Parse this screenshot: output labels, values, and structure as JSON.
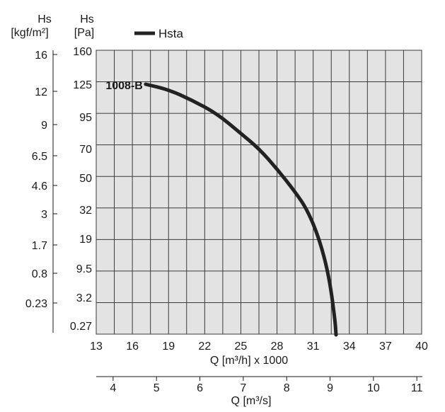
{
  "chart_data": {
    "type": "line",
    "x_axis": {
      "label": "Q [m³/h] x 1000",
      "range": [
        13,
        40
      ],
      "ticks": [
        "13",
        "16",
        "19",
        "22",
        "25",
        "28",
        "31",
        "34",
        "37",
        "40"
      ]
    },
    "x2_axis": {
      "label": "Q [m³/s]",
      "range": [
        3.611,
        11.111
      ],
      "ticks": [
        "4",
        "5",
        "6",
        "7",
        "8",
        "9",
        "10",
        "11"
      ]
    },
    "y_axis_outer": {
      "unit_line1": "Hs",
      "unit_line2": "[kgf/m²]",
      "ticks": [
        "16",
        "12",
        "9",
        "6.5",
        "4.6",
        "3",
        "1.7",
        "0.8",
        "0.23"
      ]
    },
    "y_axis_inner": {
      "unit_line1": "Hs",
      "unit_line2": "[Pa]",
      "ticks": [
        "160",
        "125",
        "95",
        "70",
        "50",
        "32",
        "19",
        "9.5",
        "3.2",
        "0.27"
      ]
    },
    "grid": true,
    "legend": {
      "position": "top-left",
      "entries": [
        {
          "name": "Hsta",
          "color": "#222222"
        }
      ]
    },
    "series": [
      {
        "name": "Hsta",
        "label": "1008-B",
        "color": "#222222",
        "points": [
          {
            "q": 17.1,
            "h": 125
          },
          {
            "q": 19.0,
            "h": 120
          },
          {
            "q": 21.0,
            "h": 110
          },
          {
            "q": 23.0,
            "h": 98
          },
          {
            "q": 25.0,
            "h": 82
          },
          {
            "q": 26.5,
            "h": 70
          },
          {
            "q": 28.0,
            "h": 56
          },
          {
            "q": 29.5,
            "h": 42
          },
          {
            "q": 30.5,
            "h": 32
          },
          {
            "q": 31.5,
            "h": 19
          },
          {
            "q": 32.3,
            "h": 8
          },
          {
            "q": 32.8,
            "h": 1
          },
          {
            "q": 32.9,
            "h": 0
          }
        ]
      }
    ]
  }
}
